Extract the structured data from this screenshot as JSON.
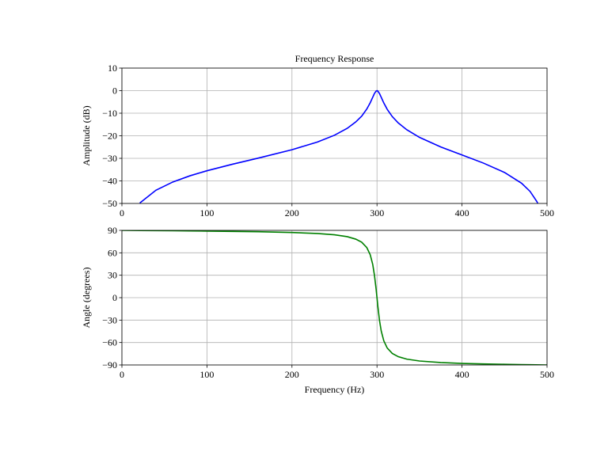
{
  "chart_data": [
    {
      "type": "line",
      "title": "Frequency Response",
      "ylabel": "Amplitude (dB)",
      "color": "#0000ff",
      "x": [
        21,
        40,
        60,
        80,
        100,
        130,
        160,
        200,
        230,
        250,
        265,
        275,
        282,
        288,
        292,
        295,
        297,
        299,
        300,
        301,
        303,
        305,
        308,
        312,
        318,
        325,
        335,
        350,
        375,
        400,
        425,
        450,
        470,
        480,
        488,
        489
      ],
      "values": [
        -49.82,
        -44.13,
        -40.46,
        -37.74,
        -35.5,
        -32.61,
        -29.93,
        -26.18,
        -22.76,
        -19.76,
        -16.7,
        -13.88,
        -11.29,
        -8.15,
        -5.39,
        -2.92,
        -1.26,
        -0.16,
        0,
        -0.18,
        -1.33,
        -2.97,
        -5.45,
        -8.26,
        -11.51,
        -14.31,
        -17.32,
        -20.7,
        -24.94,
        -28.52,
        -32.08,
        -36.27,
        -41.03,
        -44.64,
        -49.13,
        -49.9
      ],
      "xlim": [
        0,
        500
      ],
      "xticks": [
        0,
        100,
        200,
        300,
        400,
        500
      ],
      "ylim": [
        -50,
        10
      ],
      "yticks": [
        {
          "value": -50,
          "label": "−50"
        },
        {
          "value": -40,
          "label": "−40"
        },
        {
          "value": -30,
          "label": "−30"
        },
        {
          "value": -20,
          "label": "−20"
        },
        {
          "value": -10,
          "label": "−10"
        },
        0,
        10
      ],
      "grid": true
    },
    {
      "type": "line",
      "xlabel": "Frequency (Hz)",
      "ylabel": "Angle (degrees)",
      "color": "#008000",
      "x": [
        0,
        21,
        40,
        60,
        80,
        100,
        130,
        160,
        200,
        230,
        250,
        265,
        275,
        282,
        288,
        292,
        295,
        297,
        299,
        300,
        301,
        303,
        305,
        308,
        312,
        318,
        325,
        335,
        350,
        375,
        400,
        425,
        450,
        470,
        480,
        500
      ],
      "values": [
        90,
        89.8,
        89.64,
        89.46,
        89.26,
        89.04,
        88.66,
        88.17,
        87.19,
        85.83,
        84.1,
        81.6,
        78.3,
        74.2,
        67.0,
        57.5,
        44.4,
        30.1,
        11.1,
        0,
        -11.5,
        -30.9,
        -44.7,
        -57.7,
        -67.3,
        -74.6,
        -78.9,
        -82.2,
        -84.7,
        -86.8,
        -87.9,
        -88.6,
        -89.1,
        -89.5,
        -89.66,
        -90
      ],
      "xlim": [
        0,
        500
      ],
      "xticks": [
        0,
        100,
        200,
        300,
        400,
        500
      ],
      "ylim": [
        -90,
        90
      ],
      "yticks": [
        {
          "value": -90,
          "label": "−90"
        },
        {
          "value": -60,
          "label": "−60"
        },
        {
          "value": -30,
          "label": "−30"
        },
        0,
        30,
        60,
        90
      ],
      "grid": true
    }
  ]
}
